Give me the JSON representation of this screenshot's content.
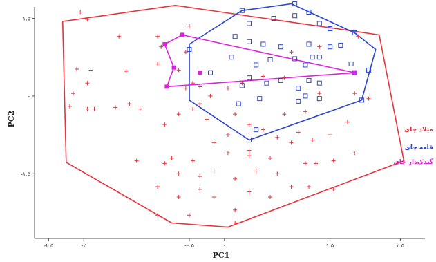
{
  "chart_data": {
    "type": "scatter",
    "xlabel": "PC1",
    "ylabel": "PC2",
    "xlim": [
      -2.7,
      2.85
    ],
    "ylim": [
      -2.75,
      1.72
    ],
    "x_ticks": [
      {
        "value": -2.5,
        "label": "-۲.۵"
      },
      {
        "value": -2.0,
        "label": "-۲"
      },
      {
        "value": -0.5,
        "label": "-۰.۵"
      },
      {
        "value": 0.0,
        "label": "۰"
      },
      {
        "value": 1.5,
        "label": "۱.۵"
      },
      {
        "value": 2.5,
        "label": "۲.۵"
      }
    ],
    "y_ticks": [
      {
        "value": 1.5,
        "label": "۱.۵"
      },
      {
        "value": 0.0,
        "label": "۰"
      },
      {
        "value": -1.5,
        "label": "-۱.۵"
      }
    ],
    "legend_placement": "right",
    "grid": false,
    "series": [
      {
        "name": "میلاد چای",
        "color": "#e8323c",
        "marker": "plus",
        "hull": [
          [
            -2.3,
            1.44
          ],
          [
            -0.7,
            1.75
          ],
          [
            2.2,
            1.18
          ],
          [
            2.55,
            -1.25
          ],
          [
            0.05,
            -2.53
          ],
          [
            -0.75,
            -2.45
          ],
          [
            -2.25,
            -1.28
          ]
        ],
        "points": [
          [
            -2.05,
            1.62
          ],
          [
            -1.95,
            1.48
          ],
          [
            -1.5,
            1.15
          ],
          [
            -0.5,
            1.35
          ],
          [
            -1.4,
            0.48
          ],
          [
            -2.1,
            0.52
          ],
          [
            -1.9,
            0.5
          ],
          [
            -1.95,
            0.25
          ],
          [
            -2.15,
            0.05
          ],
          [
            -2.2,
            -0.2
          ],
          [
            -1.95,
            -0.25
          ],
          [
            -1.55,
            -0.22
          ],
          [
            -1.85,
            -0.25
          ],
          [
            -1.35,
            -0.15
          ],
          [
            -0.45,
            0.25
          ],
          [
            -0.55,
            0.15
          ],
          [
            -0.35,
            0.18
          ],
          [
            -0.2,
            0.0
          ],
          [
            -0.35,
            -0.15
          ],
          [
            -0.45,
            -0.25
          ],
          [
            -0.65,
            -0.35
          ],
          [
            -0.85,
            -0.55
          ],
          [
            -0.25,
            -0.45
          ],
          [
            -0.15,
            -0.9
          ],
          [
            0.05,
            -0.75
          ],
          [
            0.35,
            -0.55
          ],
          [
            0.55,
            -0.65
          ],
          [
            0.75,
            -0.8
          ],
          [
            0.95,
            -0.9
          ],
          [
            0.35,
            -1.05
          ],
          [
            0.65,
            -1.2
          ],
          [
            0.05,
            -1.1
          ],
          [
            -0.45,
            -1.25
          ],
          [
            -0.75,
            -1.2
          ],
          [
            -0.85,
            -1.3
          ],
          [
            -0.65,
            -1.5
          ],
          [
            -0.35,
            -1.55
          ],
          [
            -0.15,
            -1.45
          ],
          [
            0.15,
            -1.6
          ],
          [
            0.45,
            -1.45
          ],
          [
            0.75,
            -1.5
          ],
          [
            1.15,
            -1.3
          ],
          [
            1.3,
            -1.3
          ],
          [
            1.55,
            -1.25
          ],
          [
            1.85,
            -1.1
          ],
          [
            -0.95,
            -1.75
          ],
          [
            -0.65,
            -1.95
          ],
          [
            -0.35,
            -1.8
          ],
          [
            -0.15,
            -1.95
          ],
          [
            0.35,
            -1.85
          ],
          [
            0.65,
            -1.95
          ],
          [
            0.95,
            -1.75
          ],
          [
            1.2,
            -1.75
          ],
          [
            1.55,
            -1.8
          ],
          [
            -1.25,
            -1.25
          ],
          [
            -0.95,
            -2.3
          ],
          [
            -0.5,
            -2.3
          ],
          [
            0.15,
            -2.2
          ],
          [
            0.15,
            -2.45
          ],
          [
            0.35,
            -1.15
          ],
          [
            1.05,
            -0.7
          ],
          [
            1.25,
            -0.85
          ],
          [
            1.5,
            -0.75
          ],
          [
            1.75,
            -0.5
          ],
          [
            1.85,
            0.05
          ],
          [
            2.05,
            -0.05
          ],
          [
            1.35,
            0.05
          ],
          [
            0.05,
            0.15
          ],
          [
            0.25,
            0.25
          ],
          [
            0.55,
            0.38
          ],
          [
            0.95,
            0.85
          ],
          [
            1.35,
            0.95
          ],
          [
            1.9,
            1.15
          ],
          [
            -0.55,
            0.85
          ],
          [
            -0.65,
            0.5
          ],
          [
            -1.2,
            -0.25
          ],
          [
            0.85,
            0.35
          ],
          [
            -0.95,
            0.62
          ],
          [
            0.15,
            -0.35
          ],
          [
            0.85,
            -0.35
          ],
          [
            1.15,
            -0.3
          ],
          [
            -0.9,
            0.95
          ],
          [
            -0.95,
            1.15
          ]
        ]
      },
      {
        "name": "قلعه چای",
        "color": "#2b45d0",
        "marker": "square",
        "hull": [
          [
            -0.5,
            1.0
          ],
          [
            0.25,
            1.65
          ],
          [
            0.95,
            1.78
          ],
          [
            1.85,
            1.22
          ],
          [
            2.15,
            0.9
          ],
          [
            1.95,
            -0.08
          ],
          [
            0.35,
            -0.85
          ],
          [
            -0.5,
            -0.08
          ]
        ],
        "points": [
          [
            0.25,
            1.65
          ],
          [
            1.0,
            1.78
          ],
          [
            1.2,
            1.62
          ],
          [
            1.0,
            1.55
          ],
          [
            0.7,
            1.5
          ],
          [
            0.35,
            1.4
          ],
          [
            1.35,
            1.4
          ],
          [
            1.5,
            1.3
          ],
          [
            1.85,
            1.22
          ],
          [
            0.15,
            1.15
          ],
          [
            0.35,
            1.05
          ],
          [
            0.55,
            1.0
          ],
          [
            0.8,
            0.95
          ],
          [
            1.2,
            1.0
          ],
          [
            1.5,
            0.95
          ],
          [
            1.65,
            0.98
          ],
          [
            1.35,
            0.75
          ],
          [
            1.0,
            0.72
          ],
          [
            1.15,
            0.6
          ],
          [
            1.25,
            0.75
          ],
          [
            1.8,
            0.62
          ],
          [
            1.85,
            0.45
          ],
          [
            0.45,
            0.6
          ],
          [
            0.65,
            0.7
          ],
          [
            -0.2,
            0.45
          ],
          [
            0.1,
            0.75
          ],
          [
            -0.5,
            0.9
          ],
          [
            0.35,
            0.35
          ],
          [
            0.6,
            0.25
          ],
          [
            0.25,
            0.2
          ],
          [
            0.8,
            0.3
          ],
          [
            1.2,
            0.3
          ],
          [
            1.35,
            0.25
          ],
          [
            0.5,
            -0.05
          ],
          [
            0.2,
            -0.15
          ],
          [
            0.45,
            -0.65
          ],
          [
            0.35,
            -0.85
          ],
          [
            1.05,
            -0.1
          ],
          [
            1.35,
            -0.05
          ],
          [
            1.95,
            -0.08
          ],
          [
            2.05,
            0.5
          ],
          [
            1.05,
            0.15
          ],
          [
            1.15,
            0.0
          ]
        ]
      },
      {
        "name": "گندک‌دار چای",
        "color": "#dd22dd",
        "marker": "filled-square",
        "hull": [
          [
            -0.85,
            1.0
          ],
          [
            -0.6,
            1.18
          ],
          [
            1.85,
            0.45
          ],
          [
            -0.82,
            0.18
          ],
          [
            -0.72,
            0.55
          ]
        ],
        "points": [
          [
            -0.85,
            1.0
          ],
          [
            -0.6,
            1.18
          ],
          [
            1.85,
            0.45
          ],
          [
            -0.82,
            0.18
          ],
          [
            -0.72,
            0.55
          ],
          [
            -0.35,
            0.45
          ]
        ]
      }
    ]
  }
}
